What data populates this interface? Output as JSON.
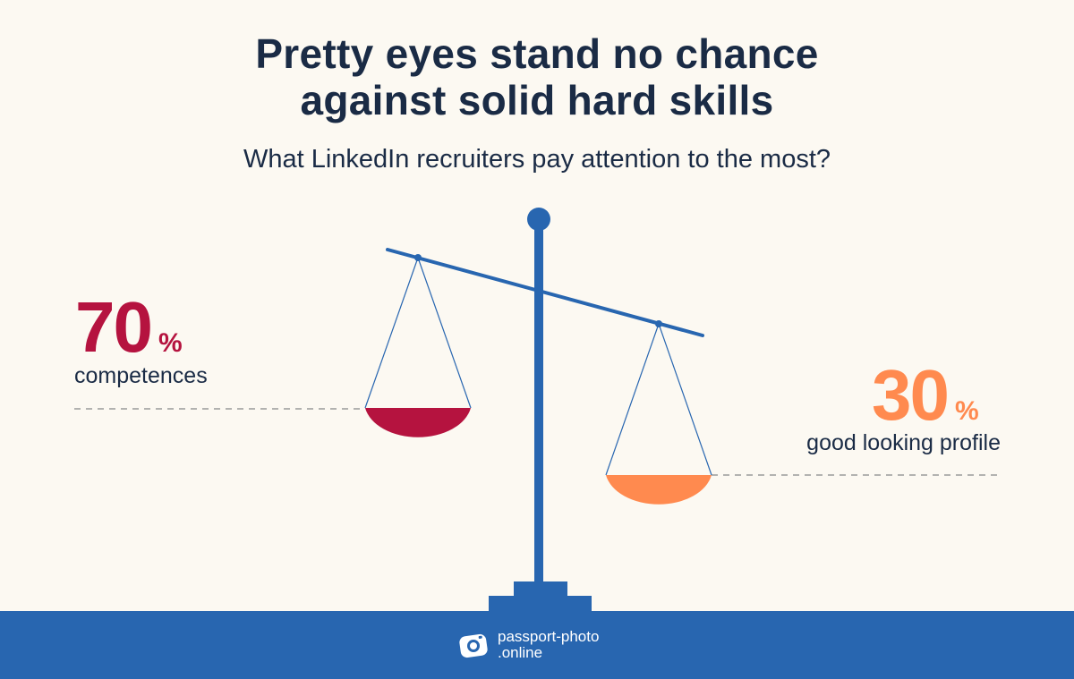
{
  "header": {
    "title_line1": "Pretty eyes stand no chance",
    "title_line2": "against solid hard skills",
    "subtitle": "What LinkedIn recruiters pay attention to the most?"
  },
  "chart_data": {
    "type": "pie",
    "title": "Pretty eyes stand no chance against solid hard skills",
    "subtitle": "What LinkedIn recruiters pay attention to the most?",
    "categories": [
      "competences",
      "good looking profile"
    ],
    "values": [
      70,
      30
    ],
    "unit": "%",
    "colors": [
      "#b5133f",
      "#ff8a4f"
    ]
  },
  "stats": {
    "left": {
      "value": "70",
      "unit": "%",
      "label": "competences"
    },
    "right": {
      "value": "30",
      "unit": "%",
      "label": "good looking profile"
    }
  },
  "colors": {
    "background": "#fcf9f2",
    "primary_blue": "#2866b0",
    "competences": "#b5133f",
    "looks": "#ff8a4f",
    "text": "#1a2b45"
  },
  "footer": {
    "brand_line1": "passport-photo",
    "brand_line2": ".online",
    "logo_icon": "camera-icon"
  }
}
